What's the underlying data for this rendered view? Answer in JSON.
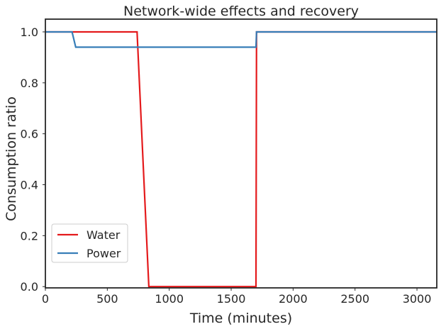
{
  "chart_data": {
    "type": "line",
    "title": "Network-wide effects and recovery",
    "xlabel": "Time (minutes)",
    "ylabel": "Consumption ratio",
    "xlim": [
      0,
      3160
    ],
    "ylim": [
      -0.005,
      1.05
    ],
    "xticks": [
      0,
      500,
      1000,
      1500,
      2000,
      2500,
      3000
    ],
    "xtick_labels": [
      "0",
      "500",
      "1000",
      "1500",
      "2000",
      "2500",
      "3000"
    ],
    "yticks": [
      0.0,
      0.2,
      0.4,
      0.6,
      0.8,
      1.0
    ],
    "ytick_labels": [
      "0.0",
      "0.2",
      "0.4",
      "0.6",
      "0.8",
      "1.0"
    ],
    "grid": false,
    "legend_position": "lower-left",
    "series": [
      {
        "name": "Water",
        "color": "#e41a1c",
        "x": [
          0,
          740,
          835,
          1700,
          1705,
          3160
        ],
        "y": [
          1.0,
          1.0,
          0.0,
          0.0,
          1.0,
          1.0
        ]
      },
      {
        "name": "Power",
        "color": "#377eb8",
        "x": [
          0,
          215,
          245,
          1700,
          1705,
          3160
        ],
        "y": [
          1.0,
          1.0,
          0.94,
          0.94,
          1.0,
          1.0
        ]
      }
    ]
  }
}
